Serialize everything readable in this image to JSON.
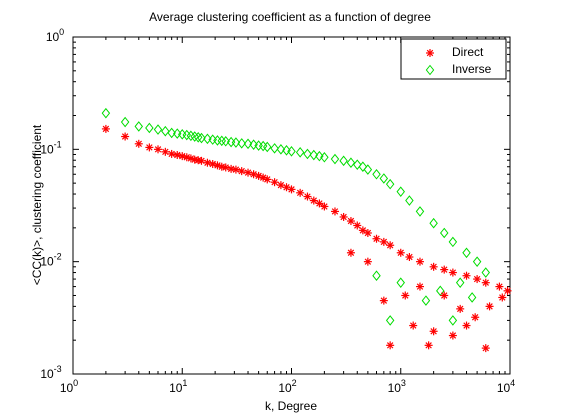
{
  "chart_data": {
    "type": "scatter",
    "title": "Average clustering coefficient as a function of degree",
    "xlabel": "k, Degree",
    "ylabel": "<CC(k)>, clustering coefficient",
    "xscale": "log",
    "yscale": "log",
    "xlim": [
      1,
      10000
    ],
    "ylim": [
      0.001,
      1
    ],
    "x_ticks": [
      {
        "value": 1,
        "base": "10",
        "exp": "0"
      },
      {
        "value": 10,
        "base": "10",
        "exp": "1"
      },
      {
        "value": 100,
        "base": "10",
        "exp": "2"
      },
      {
        "value": 1000,
        "base": "10",
        "exp": "3"
      },
      {
        "value": 10000,
        "base": "10",
        "exp": "4"
      }
    ],
    "y_ticks": [
      {
        "value": 0.001,
        "base": "10",
        "exp": "-3"
      },
      {
        "value": 0.01,
        "base": "10",
        "exp": "-2"
      },
      {
        "value": 0.1,
        "base": "10",
        "exp": "-1"
      },
      {
        "value": 1,
        "base": "10",
        "exp": "0"
      }
    ],
    "grid": false,
    "legend_position": "top-right",
    "series": [
      {
        "name": "Direct",
        "marker": "asterisk",
        "color": "#ff0000",
        "points": [
          [
            2,
            0.152
          ],
          [
            3,
            0.13
          ],
          [
            4,
            0.112
          ],
          [
            5,
            0.104
          ],
          [
            6,
            0.1
          ],
          [
            7,
            0.095
          ],
          [
            8,
            0.091
          ],
          [
            9,
            0.089
          ],
          [
            10,
            0.087
          ],
          [
            11,
            0.085
          ],
          [
            12,
            0.083
          ],
          [
            13,
            0.081
          ],
          [
            14,
            0.08
          ],
          [
            15,
            0.079
          ],
          [
            17,
            0.076
          ],
          [
            19,
            0.074
          ],
          [
            21,
            0.072
          ],
          [
            23,
            0.07
          ],
          [
            25,
            0.069
          ],
          [
            28,
            0.067
          ],
          [
            31,
            0.066
          ],
          [
            35,
            0.064
          ],
          [
            40,
            0.062
          ],
          [
            45,
            0.06
          ],
          [
            50,
            0.058
          ],
          [
            55,
            0.056
          ],
          [
            60,
            0.054
          ],
          [
            70,
            0.051
          ],
          [
            80,
            0.048
          ],
          [
            90,
            0.046
          ],
          [
            100,
            0.044
          ],
          [
            120,
            0.041
          ],
          [
            140,
            0.038
          ],
          [
            160,
            0.035
          ],
          [
            180,
            0.033
          ],
          [
            200,
            0.031
          ],
          [
            250,
            0.028
          ],
          [
            300,
            0.025
          ],
          [
            350,
            0.023
          ],
          [
            400,
            0.021
          ],
          [
            450,
            0.019
          ],
          [
            500,
            0.018
          ],
          [
            600,
            0.016
          ],
          [
            700,
            0.015
          ],
          [
            800,
            0.014
          ],
          [
            1000,
            0.012
          ],
          [
            1200,
            0.011
          ],
          [
            1500,
            0.01
          ],
          [
            2000,
            0.009
          ],
          [
            2500,
            0.0085
          ],
          [
            3000,
            0.008
          ],
          [
            4000,
            0.0075
          ],
          [
            5000,
            0.007
          ],
          [
            6000,
            0.0065
          ],
          [
            8000,
            0.006
          ],
          [
            9500,
            0.0055
          ],
          [
            800,
            0.0018
          ],
          [
            1300,
            0.0027
          ],
          [
            2000,
            0.0024
          ],
          [
            3000,
            0.0022
          ],
          [
            6000,
            0.0017
          ],
          [
            4000,
            0.0027
          ],
          [
            1800,
            0.0018
          ],
          [
            3500,
            0.0038
          ],
          [
            4800,
            0.0032
          ],
          [
            8500,
            0.0048
          ],
          [
            1100,
            0.005
          ],
          [
            2500,
            0.005
          ],
          [
            700,
            0.0045
          ],
          [
            500,
            0.01
          ],
          [
            350,
            0.012
          ],
          [
            1500,
            0.006
          ],
          [
            6500,
            0.004
          ]
        ]
      },
      {
        "name": "Inverse",
        "marker": "diamond",
        "color": "#00dd00",
        "points": [
          [
            2,
            0.21
          ],
          [
            3,
            0.175
          ],
          [
            4,
            0.16
          ],
          [
            5,
            0.155
          ],
          [
            6,
            0.15
          ],
          [
            7,
            0.145
          ],
          [
            8,
            0.14
          ],
          [
            9,
            0.138
          ],
          [
            10,
            0.136
          ],
          [
            11,
            0.134
          ],
          [
            12,
            0.132
          ],
          [
            13,
            0.13
          ],
          [
            14,
            0.128
          ],
          [
            15,
            0.126
          ],
          [
            17,
            0.124
          ],
          [
            19,
            0.122
          ],
          [
            21,
            0.12
          ],
          [
            23,
            0.119
          ],
          [
            25,
            0.118
          ],
          [
            28,
            0.116
          ],
          [
            31,
            0.115
          ],
          [
            35,
            0.113
          ],
          [
            40,
            0.112
          ],
          [
            45,
            0.11
          ],
          [
            50,
            0.108
          ],
          [
            55,
            0.107
          ],
          [
            60,
            0.105
          ],
          [
            70,
            0.102
          ],
          [
            80,
            0.1
          ],
          [
            90,
            0.098
          ],
          [
            100,
            0.096
          ],
          [
            120,
            0.094
          ],
          [
            140,
            0.091
          ],
          [
            160,
            0.089
          ],
          [
            180,
            0.087
          ],
          [
            200,
            0.085
          ],
          [
            250,
            0.082
          ],
          [
            300,
            0.079
          ],
          [
            350,
            0.076
          ],
          [
            400,
            0.073
          ],
          [
            450,
            0.07
          ],
          [
            500,
            0.066
          ],
          [
            600,
            0.06
          ],
          [
            700,
            0.055
          ],
          [
            800,
            0.049
          ],
          [
            1000,
            0.042
          ],
          [
            1200,
            0.035
          ],
          [
            1500,
            0.028
          ],
          [
            2000,
            0.022
          ],
          [
            2500,
            0.018
          ],
          [
            3000,
            0.015
          ],
          [
            4000,
            0.012
          ],
          [
            5000,
            0.01
          ],
          [
            6000,
            0.008
          ],
          [
            800,
            0.003
          ],
          [
            1700,
            0.0045
          ],
          [
            3000,
            0.003
          ],
          [
            4500,
            0.0048
          ],
          [
            1000,
            0.0065
          ],
          [
            2300,
            0.0055
          ],
          [
            600,
            0.0075
          ],
          [
            3500,
            0.0065
          ]
        ]
      }
    ]
  }
}
